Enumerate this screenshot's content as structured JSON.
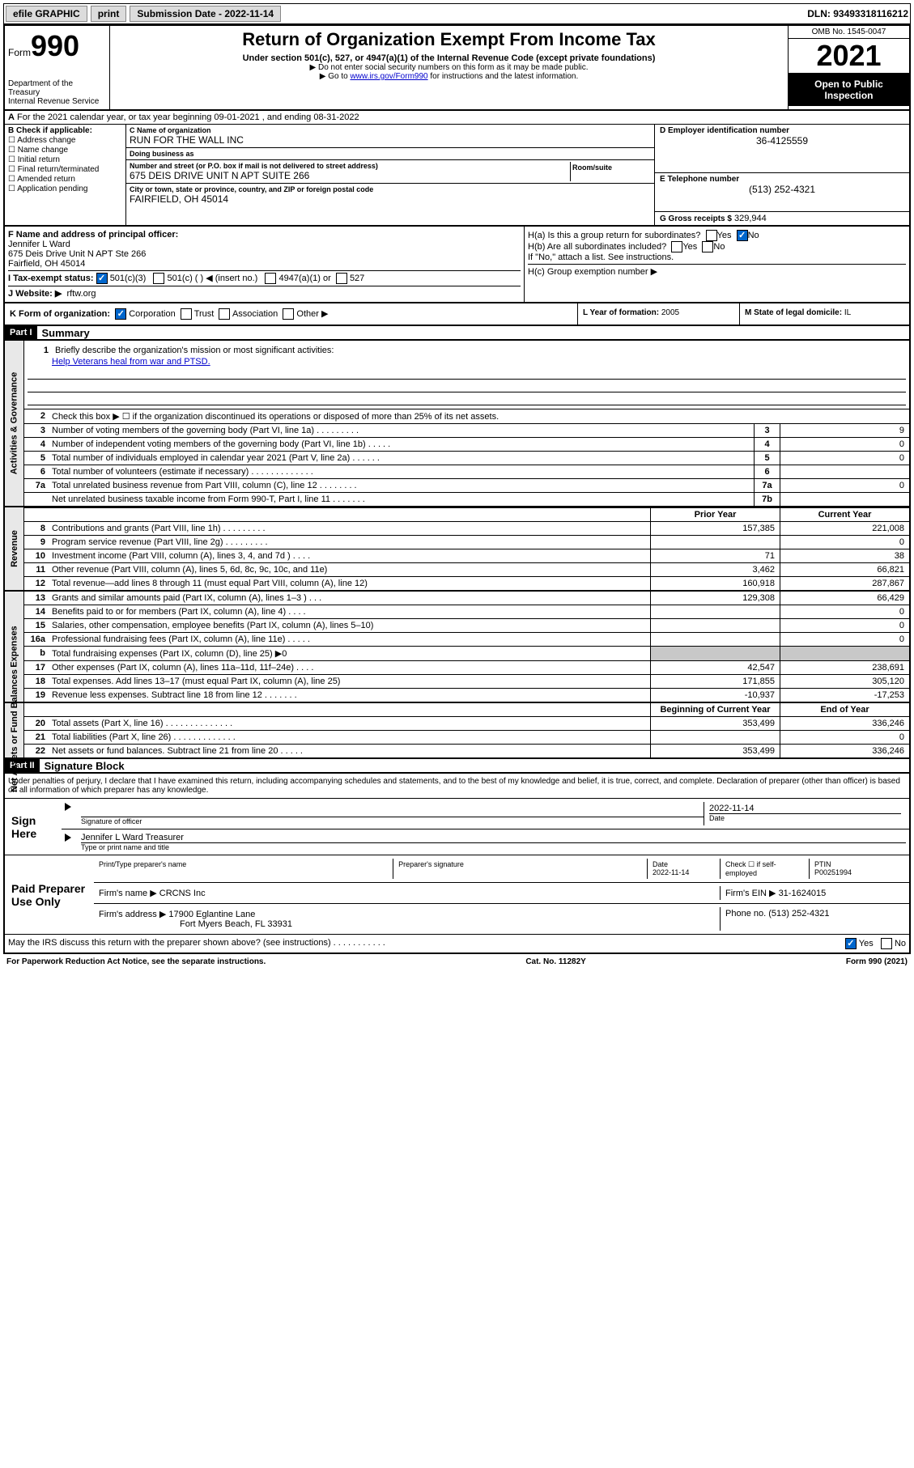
{
  "topbar": {
    "efile": "efile GRAPHIC",
    "print": "print",
    "sub_date_label": "Submission Date - 2022-11-14",
    "dln_label": "DLN:",
    "dln": "93493318116212"
  },
  "header": {
    "form_prefix": "Form",
    "form_num": "990",
    "dept": "Department of the Treasury",
    "irs": "Internal Revenue Service",
    "title": "Return of Organization Exempt From Income Tax",
    "subtitle1": "Under section 501(c), 527, or 4947(a)(1) of the Internal Revenue Code (except private foundations)",
    "subtitle2": "▶ Do not enter social security numbers on this form as it may be made public.",
    "subtitle3_pre": "▶ Go to ",
    "subtitle3_link": "www.irs.gov/Form990",
    "subtitle3_post": " for instructions and the latest information.",
    "omb": "OMB No. 1545-0047",
    "year": "2021",
    "open": "Open to Public Inspection"
  },
  "line_a": "For the 2021 calendar year, or tax year beginning 09-01-2021  , and ending 08-31-2022",
  "line_a_prefix": "A",
  "box_b": {
    "label": "B Check if applicable:",
    "opts": [
      "Address change",
      "Name change",
      "Initial return",
      "Final return/terminated",
      "Amended return",
      "Application pending"
    ]
  },
  "box_c": {
    "name_label": "C Name of organization",
    "name": "RUN FOR THE WALL INC",
    "dba_label": "Doing business as",
    "dba": "",
    "addr_label": "Number and street (or P.O. box if mail is not delivered to street address)",
    "addr": "675 DEIS DRIVE UNIT N APT SUITE 266",
    "room_label": "Room/suite",
    "city_label": "City or town, state or province, country, and ZIP or foreign postal code",
    "city": "FAIRFIELD, OH  45014"
  },
  "box_d": {
    "label": "D Employer identification number",
    "val": "36-4125559"
  },
  "box_e": {
    "label": "E Telephone number",
    "val": "(513) 252-4321"
  },
  "box_g": {
    "label": "G Gross receipts $",
    "val": "329,944"
  },
  "box_f": {
    "label": "F Name and address of principal officer:",
    "name": "Jennifer L Ward",
    "addr1": "675 Deis Drive Unit N APT Ste 266",
    "addr2": "Fairfield, OH  45014"
  },
  "box_h": {
    "ha": "H(a)  Is this a group return for subordinates?",
    "hb": "H(b)  Are all subordinates included?",
    "hb_note": "If \"No,\" attach a list. See instructions.",
    "hc": "H(c)  Group exemption number ▶",
    "yes": "Yes",
    "no": "No"
  },
  "line_i": {
    "label": "I   Tax-exempt status:",
    "opts": [
      "501(c)(3)",
      "501(c) (  ) ◀ (insert no.)",
      "4947(a)(1) or",
      "527"
    ]
  },
  "line_j": {
    "label": "J   Website: ▶",
    "val": "rftw.org"
  },
  "line_k": {
    "label": "K Form of organization:",
    "opts": [
      "Corporation",
      "Trust",
      "Association",
      "Other ▶"
    ]
  },
  "line_l": {
    "label": "L Year of formation:",
    "val": "2005"
  },
  "line_m": {
    "label": "M State of legal domicile:",
    "val": "IL"
  },
  "part1": {
    "hdr": "Part I",
    "title": "Summary",
    "q1": "Briefly describe the organization's mission or most significant activities:",
    "mission": "Help Veterans heal from war and PTSD.",
    "q2": "Check this box ▶ ☐  if the organization discontinued its operations or disposed of more than 25% of its net assets."
  },
  "sidebar": {
    "gov": "Activities & Governance",
    "rev": "Revenue",
    "exp": "Expenses",
    "net": "Net Assets or Fund Balances"
  },
  "gov_rows": [
    {
      "n": "3",
      "d": "Number of voting members of the governing body (Part VI, line 1a)  .   .   .   .   .   .   .   .   .",
      "box": "3",
      "v": "9"
    },
    {
      "n": "4",
      "d": "Number of independent voting members of the governing body (Part VI, line 1b)  .   .   .   .   .",
      "box": "4",
      "v": "0"
    },
    {
      "n": "5",
      "d": "Total number of individuals employed in calendar year 2021 (Part V, line 2a)  .   .   .   .   .   .",
      "box": "5",
      "v": "0"
    },
    {
      "n": "6",
      "d": "Total number of volunteers (estimate if necessary)  .   .   .   .   .   .   .   .   .   .   .   .   .",
      "box": "6",
      "v": ""
    },
    {
      "n": "7a",
      "d": "Total unrelated business revenue from Part VIII, column (C), line 12  .   .   .   .   .   .   .   .",
      "box": "7a",
      "v": "0"
    },
    {
      "n": "",
      "d": "Net unrelated business taxable income from Form 990-T, Part I, line 11  .   .   .   .   .   .   .",
      "box": "7b",
      "v": ""
    }
  ],
  "col_hdr": {
    "prior": "Prior Year",
    "current": "Current Year"
  },
  "rev_rows": [
    {
      "n": "8",
      "d": "Contributions and grants (Part VIII, line 1h)  .   .   .   .   .   .   .   .   .",
      "p": "157,385",
      "c": "221,008"
    },
    {
      "n": "9",
      "d": "Program service revenue (Part VIII, line 2g)  .   .   .   .   .   .   .   .   .",
      "p": "",
      "c": "0"
    },
    {
      "n": "10",
      "d": "Investment income (Part VIII, column (A), lines 3, 4, and 7d )  .   .   .   .",
      "p": "71",
      "c": "38"
    },
    {
      "n": "11",
      "d": "Other revenue (Part VIII, column (A), lines 5, 6d, 8c, 9c, 10c, and 11e)",
      "p": "3,462",
      "c": "66,821"
    },
    {
      "n": "12",
      "d": "Total revenue—add lines 8 through 11 (must equal Part VIII, column (A), line 12)",
      "p": "160,918",
      "c": "287,867"
    }
  ],
  "exp_rows": [
    {
      "n": "13",
      "d": "Grants and similar amounts paid (Part IX, column (A), lines 1–3 )  .   .   .",
      "p": "129,308",
      "c": "66,429"
    },
    {
      "n": "14",
      "d": "Benefits paid to or for members (Part IX, column (A), line 4)  .   .   .   .",
      "p": "",
      "c": "0"
    },
    {
      "n": "15",
      "d": "Salaries, other compensation, employee benefits (Part IX, column (A), lines 5–10)",
      "p": "",
      "c": "0"
    },
    {
      "n": "16a",
      "d": "Professional fundraising fees (Part IX, column (A), line 11e)  .   .   .   .   .",
      "p": "",
      "c": "0"
    },
    {
      "n": "b",
      "d": "Total fundraising expenses (Part IX, column (D), line 25) ▶0",
      "p": "gray",
      "c": "gray"
    },
    {
      "n": "17",
      "d": "Other expenses (Part IX, column (A), lines 11a–11d, 11f–24e)  .   .   .   .",
      "p": "42,547",
      "c": "238,691"
    },
    {
      "n": "18",
      "d": "Total expenses. Add lines 13–17 (must equal Part IX, column (A), line 25)",
      "p": "171,855",
      "c": "305,120"
    },
    {
      "n": "19",
      "d": "Revenue less expenses. Subtract line 18 from line 12  .   .   .   .   .   .   .",
      "p": "-10,937",
      "c": "-17,253"
    }
  ],
  "net_hdr": {
    "begin": "Beginning of Current Year",
    "end": "End of Year"
  },
  "net_rows": [
    {
      "n": "20",
      "d": "Total assets (Part X, line 16)  .   .   .   .   .   .   .   .   .   .   .   .   .   .",
      "p": "353,499",
      "c": "336,246"
    },
    {
      "n": "21",
      "d": "Total liabilities (Part X, line 26)  .   .   .   .   .   .   .   .   .   .   .   .   .",
      "p": "",
      "c": "0"
    },
    {
      "n": "22",
      "d": "Net assets or fund balances. Subtract line 21 from line 20  .   .   .   .   .",
      "p": "353,499",
      "c": "336,246"
    }
  ],
  "part2": {
    "hdr": "Part II",
    "title": "Signature Block",
    "decl": "Under penalties of perjury, I declare that I have examined this return, including accompanying schedules and statements, and to the best of my knowledge and belief, it is true, correct, and complete. Declaration of preparer (other than officer) is based on all information of which preparer has any knowledge."
  },
  "sign": {
    "here": "Sign Here",
    "sig_label": "Signature of officer",
    "date_label": "Date",
    "date": "2022-11-14",
    "name": "Jennifer L Ward  Treasurer",
    "name_label": "Type or print name and title"
  },
  "paid": {
    "label": "Paid Preparer Use Only",
    "c1": "Print/Type preparer's name",
    "c2": "Preparer's signature",
    "c3": "Date",
    "c3v": "2022-11-14",
    "c4": "Check ☐ if self-employed",
    "c5": "PTIN",
    "c5v": "P00251994",
    "firm_label": "Firm's name    ▶",
    "firm": "CRCNS Inc",
    "ein_label": "Firm's EIN ▶",
    "ein": "31-1624015",
    "addr_label": "Firm's address ▶",
    "addr1": "17900 Eglantine Lane",
    "addr2": "Fort Myers Beach, FL  33931",
    "phone_label": "Phone no.",
    "phone": "(513) 252-4321"
  },
  "discuss": {
    "q": "May the IRS discuss this return with the preparer shown above? (see instructions)  .   .   .   .   .   .   .   .   .   .   .",
    "yes": "Yes",
    "no": "No"
  },
  "footer": {
    "left": "For Paperwork Reduction Act Notice, see the separate instructions.",
    "mid": "Cat. No. 11282Y",
    "right": "Form 990 (2021)"
  }
}
